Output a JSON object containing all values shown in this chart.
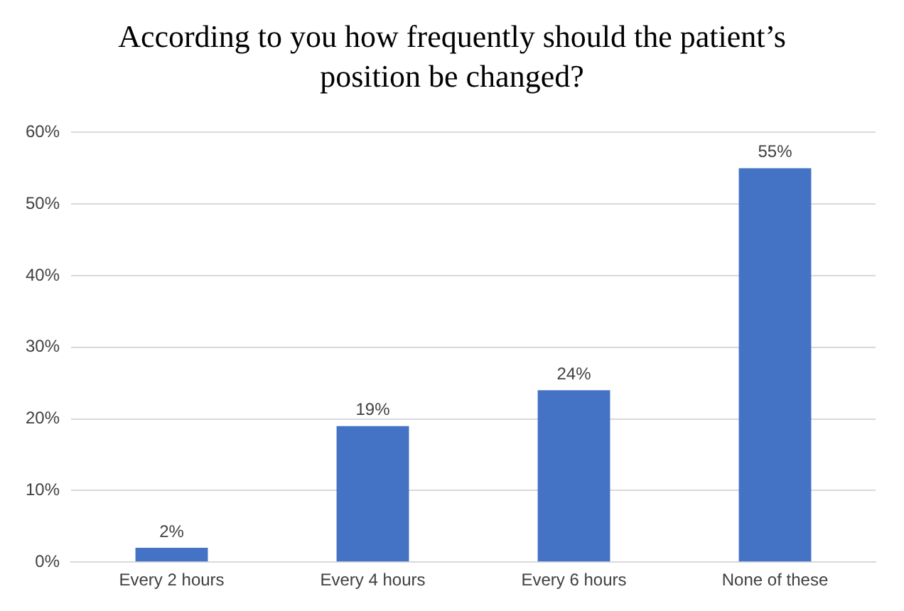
{
  "chart_data": {
    "type": "bar",
    "title": "According to you how frequently should the patient’s position be changed?",
    "categories": [
      "Every 2 hours",
      "Every 4 hours",
      "Every 6 hours",
      "None of these"
    ],
    "values": [
      2,
      19,
      24,
      55
    ],
    "value_labels": [
      "2%",
      "19%",
      "24%",
      "55%"
    ],
    "color": "#4472c4",
    "ylim": [
      0,
      60
    ],
    "yticks": [
      {
        "value": 0,
        "label": "0%"
      },
      {
        "value": 10,
        "label": "10%"
      },
      {
        "value": 20,
        "label": "20%"
      },
      {
        "value": 30,
        "label": "30%"
      },
      {
        "value": 40,
        "label": "40%"
      },
      {
        "value": 50,
        "label": "50%"
      },
      {
        "value": 60,
        "label": "60%"
      }
    ],
    "grid": "y"
  }
}
